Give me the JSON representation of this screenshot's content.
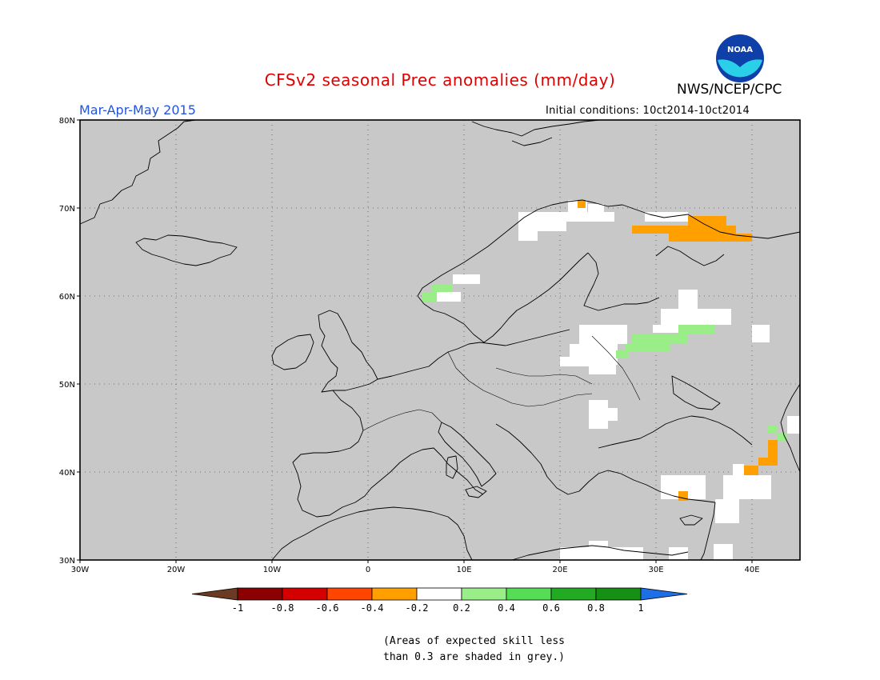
{
  "title": "CFSv2 seasonal Prec anomalies (mm/day)",
  "period": "Mar-Apr-May 2015",
  "initial_conditions": "Initial conditions: 10ct2014-10ct2014",
  "agency": "NWS/NCEP/CPC",
  "logo_text": "NOAA",
  "map": {
    "lon_range": [
      -30,
      45
    ],
    "lat_range": [
      30,
      80
    ],
    "lat_labels": [
      "30N",
      "40N",
      "50N",
      "60N",
      "70N",
      "80N"
    ],
    "lon_labels": [
      "30W",
      "20W",
      "10W",
      "0",
      "10E",
      "20E",
      "30E",
      "40E"
    ],
    "background_color": "#c8c8c8",
    "anomaly_areas": [
      {
        "category": "-0.2..0.2",
        "color": "#ffffff",
        "region": "Northern Norway / Finnmark",
        "lon": [
          16,
          28
        ],
        "lat": [
          67,
          70
        ]
      },
      {
        "category": "-0.4..-0.2",
        "color": "#ff9f00",
        "region": "Kola Peninsula",
        "lon": [
          28,
          40
        ],
        "lat": [
          66.5,
          68.5
        ]
      },
      {
        "category": "0.2..0.4",
        "color": "#99ee88",
        "region": "Western Norway coast",
        "lon": [
          5,
          9
        ],
        "lat": [
          59.5,
          61.5
        ]
      },
      {
        "category": "-0.2..0.2",
        "color": "#ffffff",
        "region": "Belarus / Poland",
        "lon": [
          20,
          26
        ],
        "lat": [
          50,
          55.5
        ]
      },
      {
        "category": "0.2..0.4",
        "color": "#99ee88",
        "region": "Western Russia",
        "lon": [
          26,
          36
        ],
        "lat": [
          53,
          56
        ]
      },
      {
        "category": "-0.2..0.2",
        "color": "#ffffff",
        "region": "Romania",
        "lon": [
          23,
          26
        ],
        "lat": [
          44,
          47.5
        ]
      },
      {
        "category": "-0.4..-0.2",
        "color": "#ff9f00",
        "region": "Caucasus",
        "lon": [
          39,
          44
        ],
        "lat": [
          39.5,
          43
        ]
      },
      {
        "category": "-0.2..0.2",
        "color": "#ffffff",
        "region": "Anatolia south coast",
        "lon": [
          31,
          41
        ],
        "lat": [
          33,
          38
        ]
      },
      {
        "category": "-0.2..0.2",
        "color": "#ffffff",
        "region": "Egypt / Libya coast",
        "lon": [
          20,
          33
        ],
        "lat": [
          30,
          31
        ]
      }
    ]
  },
  "legend": {
    "labels": [
      "-1",
      "-0.8",
      "-0.6",
      "-0.4",
      "-0.2",
      "0.2",
      "0.4",
      "0.6",
      "0.8",
      "1"
    ],
    "colors": [
      "#8b0000",
      "#d40000",
      "#ff4500",
      "#ff9f00",
      "#ffffff",
      "#99ee88",
      "#55dd55",
      "#22aa22",
      "#159015"
    ],
    "low_end_color": "#6b3a22",
    "high_end_color": "#1e6ee8"
  },
  "note": [
    "(Areas of expected skill less",
    "than 0.3 are shaded in grey.)"
  ]
}
